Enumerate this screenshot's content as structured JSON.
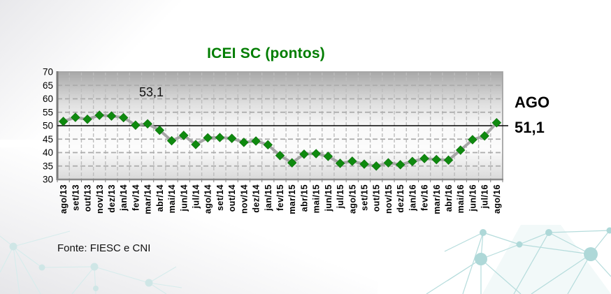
{
  "title": {
    "text": "ICEI SC (pontos)"
  },
  "inline_annotation": {
    "text": "53,1"
  },
  "right_label": {
    "line1": "AGO",
    "line2": "51,1"
  },
  "source": {
    "text": "Fonte: FIESC e CNI"
  },
  "colors": {
    "title_green": "#007d00",
    "marker_green": "#0f8a0f",
    "marker_edge": "#0a6e0a",
    "series_line_gray": "#a6a6a6",
    "reference_line_black": "#000000",
    "grid_gray": "#ababab",
    "vgrid_gray": "#bdbdbd",
    "axis_dark_gray": "#7a7a7a",
    "border_gray": "#a3a3a3",
    "network_teal": "#b5dcdc",
    "network_teal_light": "#d6ecec"
  },
  "chart_data": {
    "type": "line",
    "title": "ICEI SC (pontos)",
    "categories": [
      "ago/13",
      "set/13",
      "out/13",
      "nov/13",
      "dez/13",
      "jan/14",
      "fev/14",
      "mar/14",
      "abr/14",
      "mai/14",
      "jun/14",
      "jul/14",
      "ago/14",
      "set/14",
      "out/14",
      "nov/14",
      "dez/14",
      "jan/15",
      "fev/15",
      "mar/15",
      "abr/15",
      "mai/15",
      "jun/15",
      "jul/15",
      "ago/15",
      "set/15",
      "out/15",
      "nov/15",
      "dez/15",
      "jan/16",
      "fev/16",
      "mar/16",
      "abr/16",
      "mai/16",
      "jun/16",
      "jul/16",
      "ago/16"
    ],
    "series": [
      {
        "name": "ICEI SC",
        "values": [
          51.6,
          53.1,
          52.4,
          53.9,
          53.6,
          53.0,
          50.2,
          50.7,
          48.3,
          44.4,
          46.4,
          43.0,
          45.5,
          45.6,
          45.3,
          43.8,
          44.3,
          42.9,
          38.9,
          36.2,
          39.4,
          39.6,
          38.6,
          36.0,
          36.8,
          35.7,
          35.0,
          36.2,
          35.5,
          36.7,
          37.8,
          37.4,
          37.2,
          40.9,
          44.8,
          46.2,
          51.1
        ]
      }
    ],
    "ylim": [
      30,
      70
    ],
    "yticks": [
      70,
      65,
      60,
      55,
      50,
      45,
      40,
      35,
      30
    ],
    "ytick_step": 5,
    "reference_line": 50,
    "grid": "dashed",
    "legend": "none",
    "marker": "diamond",
    "x_label_rotation": -90,
    "annotations": [
      {
        "text": "53,1",
        "refers_to": "set/13",
        "position": "inside-plot-top-left"
      },
      {
        "text": "AGO 51,1",
        "refers_to": "ago/16",
        "position": "right-of-plot"
      }
    ]
  }
}
